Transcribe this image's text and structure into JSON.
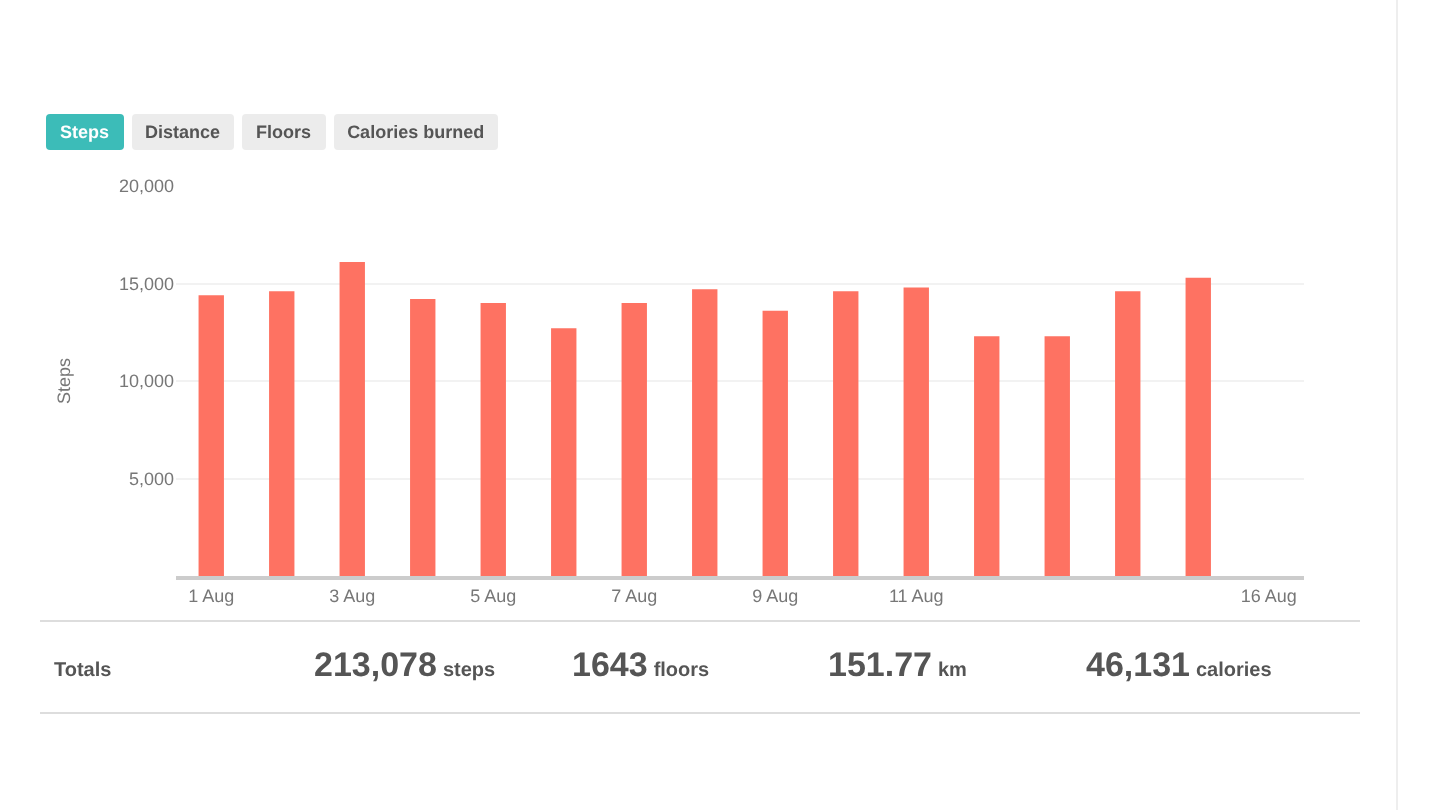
{
  "chart_data": [
    {
      "type": "bar",
      "ylabel": "Steps",
      "annotations": [
        "Steps",
        "Distance",
        "Floors",
        "Calories burned"
      ],
      "categories": [
        "1 Aug",
        null,
        "3 Aug",
        null,
        "5 Aug",
        null,
        "7 Aug",
        null,
        "9 Aug",
        null,
        "11 Aug",
        null,
        null,
        null,
        null,
        "16 Aug"
      ],
      "series": [
        {
          "color": "#fe7262",
          "values": [
            14400,
            14600,
            16100,
            14200,
            14000,
            12700,
            14000,
            14700,
            13600,
            14600,
            14800,
            12300,
            12300,
            14600,
            15300,
            null
          ]
        }
      ],
      "ylim": [
        0,
        20000
      ],
      "yticks": [
        {
          "value": 5000,
          "label": "5,000"
        },
        {
          "value": 10000,
          "label": "10,000"
        },
        {
          "value": 15000,
          "label": "15,000"
        },
        {
          "value": 20000,
          "label": "20,000"
        }
      ],
      "grid": "y"
    },
    {
      "type": "other",
      "title": "Totals",
      "categories": [
        "steps",
        "floors",
        "km",
        "calories"
      ],
      "value_labels": [
        "213,078",
        "1643",
        "151.77",
        "46,131"
      ]
    }
  ]
}
